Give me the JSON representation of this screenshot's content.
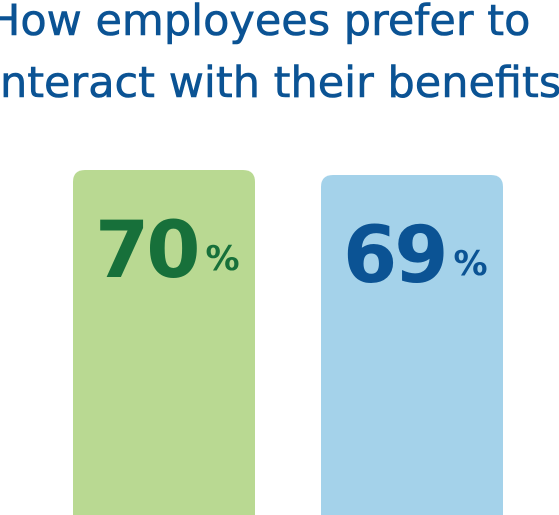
{
  "title_lines": [
    "How employees prefer to",
    "interact with their benefits"
  ],
  "chart_data": {
    "type": "bar",
    "categories": [
      "",
      ""
    ],
    "values": [
      70,
      69
    ],
    "value_suffix": "%",
    "ylim": [
      0,
      100
    ],
    "colors": {
      "bars": [
        "#b9d992",
        "#a4d2ea"
      ],
      "labels": [
        "#17703a",
        "#0b5394"
      ]
    },
    "legend": "none",
    "grid": false
  }
}
